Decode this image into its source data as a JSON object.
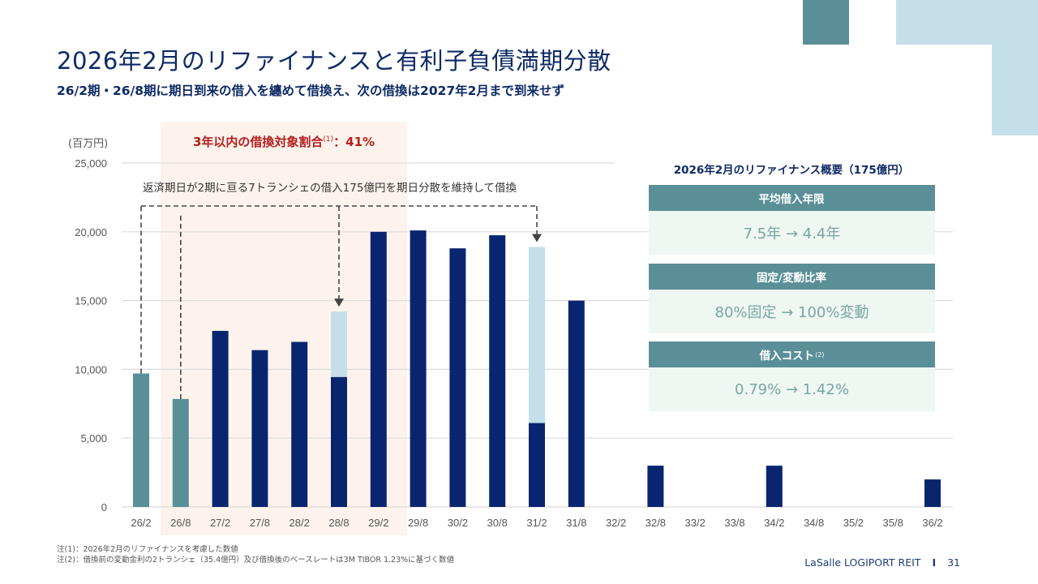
{
  "header": {
    "title": "2026年2月のリファイナンスと有利子負債満期分散",
    "subtitle": "26/2期・26/8期に期日到来の借入を纏めて借換え、次の借換は2027年2月まで到来せず"
  },
  "highlight": {
    "ratio_label": "3年以内の借換対象割合",
    "ratio_note": "(1)",
    "ratio_value": "：41%",
    "annotation": "返済期日が2期に亘る7トランシェの借入175億円を期日分散を維持して借換"
  },
  "panel": {
    "title": "2026年2月のリファイナンス概要（175億円）",
    "cards": [
      {
        "label": "平均借入年限",
        "note": "",
        "value": "7.5年 → 4.4年"
      },
      {
        "label": "固定/変動比率",
        "note": "",
        "value": "80%固定 → 100%変動"
      },
      {
        "label": "借入コスト",
        "note": "(2)",
        "value": "0.79% → 1.42%"
      }
    ]
  },
  "notes": [
    "注(1)：2026年2月のリファイナンスを考慮した数値",
    "注(2)：借換前の変動金利の2トランシェ（35.4億円）及び借換後のベースレートは3M TIBOR 1.23%に基づく数値"
  ],
  "footer": {
    "brand": "LaSalle LOGIPORT REIT",
    "separator": "I",
    "page": "31"
  },
  "colors": {
    "refinanced": "#5a8f98",
    "existing": "#0a2570",
    "new": "#c4dfea",
    "highlight_bg": "#fdf3ec",
    "accent_red": "#b41e1e"
  },
  "chart_data": {
    "type": "bar",
    "stacked": true,
    "unit_label": "(百万円)",
    "ylim": [
      0,
      25000
    ],
    "yticks": [
      0,
      5000,
      10000,
      15000,
      20000,
      25000
    ],
    "ytick_labels": [
      "0",
      "5,000",
      "10,000",
      "15,000",
      "20,000",
      "25,000"
    ],
    "grid": true,
    "categories": [
      "26/2",
      "26/8",
      "27/2",
      "27/8",
      "28/2",
      "28/8",
      "29/2",
      "29/8",
      "30/2",
      "30/8",
      "31/2",
      "31/8",
      "32/2",
      "32/8",
      "33/2",
      "33/8",
      "34/2",
      "34/8",
      "35/2",
      "35/8",
      "36/2"
    ],
    "series": [
      {
        "name": "refinanced",
        "values": [
          9700,
          7850,
          0,
          0,
          0,
          0,
          0,
          0,
          0,
          0,
          0,
          0,
          0,
          0,
          0,
          0,
          0,
          0,
          0,
          0,
          0
        ]
      },
      {
        "name": "existing",
        "values": [
          0,
          0,
          12800,
          11400,
          12000,
          9450,
          20000,
          20100,
          18800,
          19750,
          6100,
          15000,
          0,
          3000,
          0,
          0,
          3000,
          0,
          0,
          0,
          2000
        ]
      },
      {
        "name": "new",
        "values": [
          0,
          0,
          0,
          0,
          0,
          4750,
          0,
          0,
          0,
          0,
          12800,
          0,
          0,
          0,
          0,
          0,
          0,
          0,
          0,
          0,
          0
        ]
      }
    ],
    "highlight_range": [
      "26/8",
      "29/2"
    ],
    "arrows": {
      "from": [
        "26/2",
        "26/8"
      ],
      "to": [
        "28/8",
        "31/2"
      ]
    }
  }
}
